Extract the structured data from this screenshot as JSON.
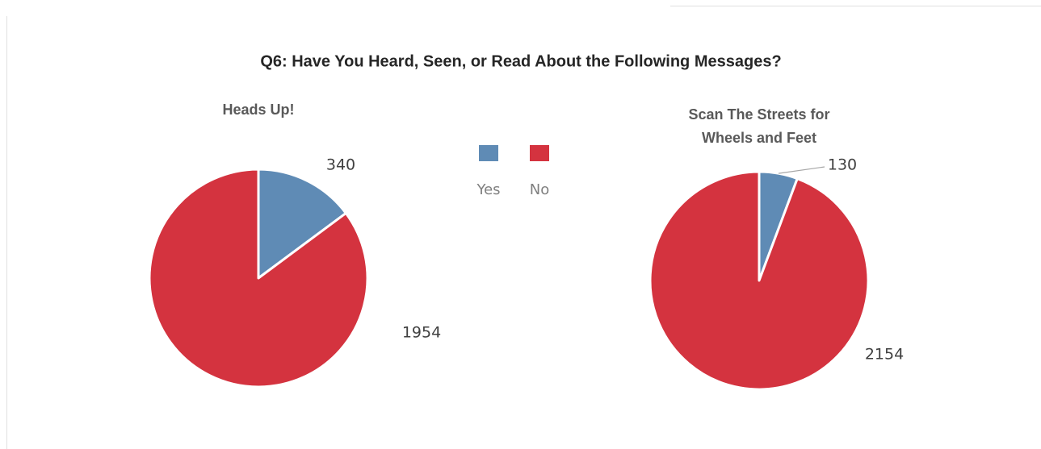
{
  "title": "Q6: Have You Heard, Seen, or Read About the Following Messages?",
  "chart_data": [
    {
      "type": "pie",
      "title": [
        "Heads Up!"
      ],
      "categories": [
        "Yes",
        "No"
      ],
      "values": [
        340,
        1954
      ],
      "colors": [
        "#5f8bb5",
        "#d4333f"
      ]
    },
    {
      "type": "pie",
      "title": [
        "Scan The Streets for",
        "Wheels and Feet"
      ],
      "categories": [
        "Yes",
        "No"
      ],
      "values": [
        130,
        2154
      ],
      "colors": [
        "#5f8bb5",
        "#d4333f"
      ]
    }
  ]
}
